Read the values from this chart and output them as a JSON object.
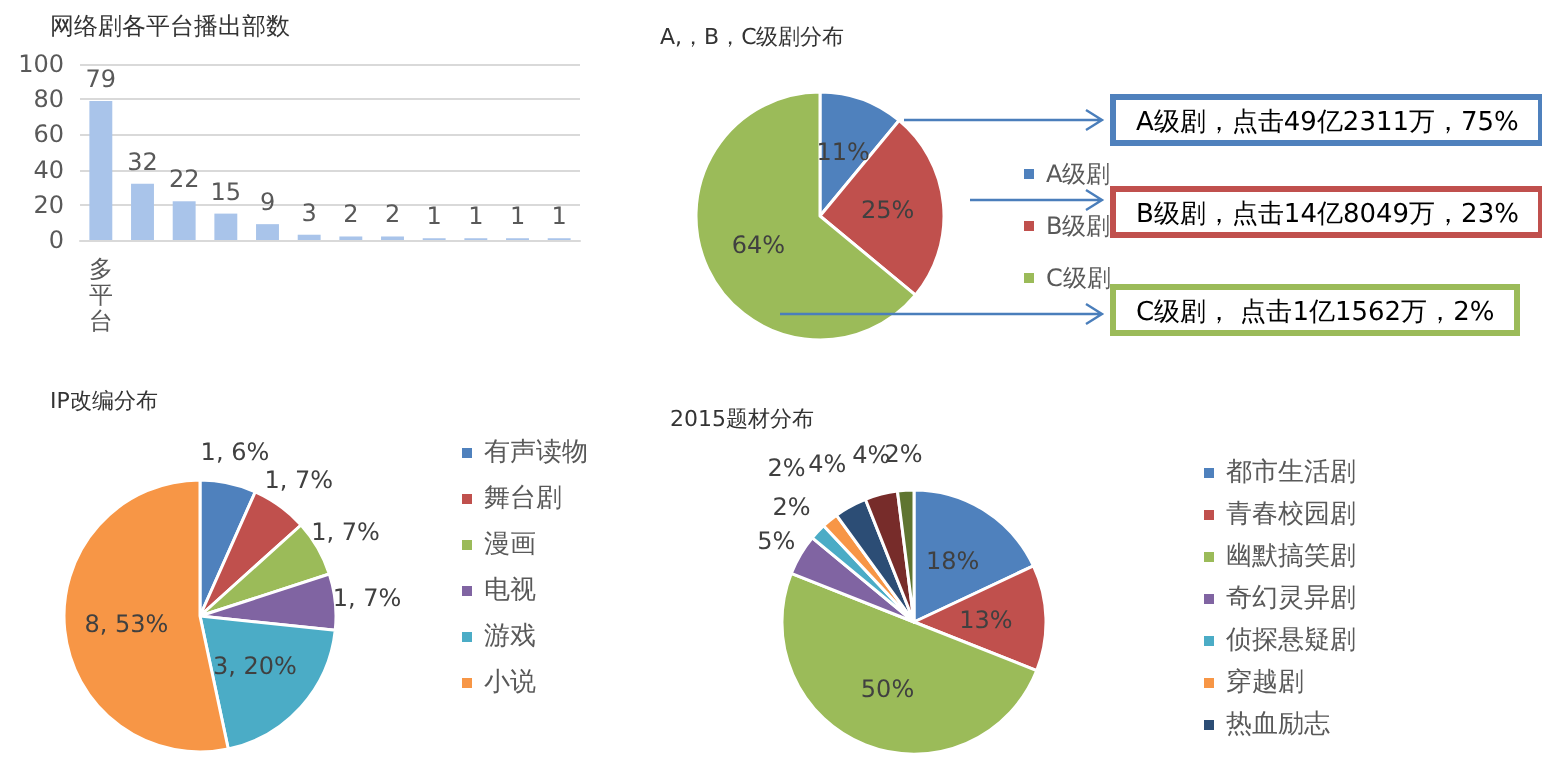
{
  "chart_data": [
    {
      "type": "bar",
      "title": "网络剧各平台播出部数",
      "categories": [
        "多平台",
        null,
        null,
        null,
        null,
        null,
        null,
        null,
        null,
        null,
        null,
        null
      ],
      "values": [
        79,
        32,
        22,
        15,
        9,
        3,
        2,
        2,
        1,
        1,
        1,
        1
      ],
      "color": "#a9c4ea",
      "ylim": [
        0,
        100
      ],
      "yticks": [
        0,
        20,
        40,
        60,
        80,
        100
      ],
      "grid": "y",
      "data_labels": true
    },
    {
      "type": "pie",
      "title": "A,，B，C级剧分布",
      "categories": [
        "A级剧",
        "B级剧",
        "C级剧"
      ],
      "values": [
        11,
        25,
        64
      ],
      "colors": [
        "#4f81bd",
        "#c0504d",
        "#9bbb59"
      ],
      "value_labels": [
        "11%",
        "25%",
        "64%"
      ],
      "legend": "right",
      "annotations": [
        "A级剧，点击49亿2311万，75%",
        "B级剧，点击14亿8049万，23%",
        "C级剧， 点击1亿1562万，2%"
      ]
    },
    {
      "type": "pie",
      "title": "IP改编分布",
      "categories": [
        "有声读物",
        "舞台剧",
        "漫画",
        "电视",
        "游戏",
        "小说"
      ],
      "values": [
        1,
        1,
        1,
        1,
        3,
        8
      ],
      "colors": [
        "#4f81bd",
        "#c0504d",
        "#9bbb59",
        "#8064a2",
        "#4bacc6",
        "#f79646"
      ],
      "value_labels": [
        "1, 6%",
        "1, 7%",
        "1, 7%",
        "1, 7%",
        "3, 20%",
        "8, 53%"
      ],
      "legend": "right"
    },
    {
      "type": "pie",
      "title": "2015题材分布",
      "categories": [
        "都市生活剧",
        "青春校园剧",
        "幽默搞笑剧",
        "奇幻灵异剧",
        "侦探悬疑剧",
        "穿越剧",
        "热血励志",
        null,
        null
      ],
      "values": [
        18,
        13,
        50,
        5,
        2,
        2,
        4,
        4,
        2
      ],
      "colors": [
        "#4f81bd",
        "#c0504d",
        "#9bbb59",
        "#8064a2",
        "#4bacc6",
        "#f79646",
        "#2c4d75",
        "#772c2a",
        "#5f7530"
      ],
      "value_labels": [
        "18%",
        "13%",
        "50%",
        "5%",
        "2%",
        "2%",
        "4%",
        "4%",
        "2%"
      ],
      "legend": "right"
    }
  ]
}
